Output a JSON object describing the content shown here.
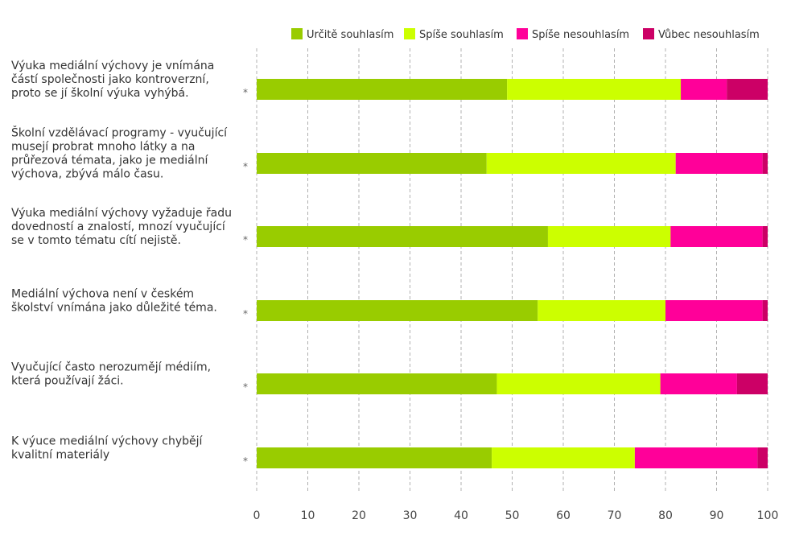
{
  "chart_data": {
    "type": "bar",
    "orientation": "horizontal",
    "stacked": true,
    "categories": [
      "Výuka mediální výchovy je vnímána částí společnosti jako kontroverzní, proto se jí školní výuka vyhýbá.",
      "Školní vzdělávací programy - vyučující musejí probrat mnoho látky a na průřezová témata, jako je mediální výchova, zbývá málo času.",
      "Výuka mediální výchovy vyžaduje řadu dovedností a znalostí, mnozí vyučující se v tomto tématu cítí nejistě.",
      "Mediální výchova není v českém školství vnímána jako důležité téma.",
      "Vyučující často nerozumějí médiím, která používají žáci.",
      "K výuce mediální výchovy chybějí kvalitní materiály"
    ],
    "category_lines": [
      [
        "Výuka mediální výchovy je vnímána",
        "částí společnosti jako kontroverzní,",
        "proto se jí školní výuka vyhýbá."
      ],
      [
        "Školní vzdělávací programy - vyučující",
        "musejí probrat mnoho látky a na",
        "průřezová témata, jako je mediální",
        "výchova, zbývá málo času."
      ],
      [
        "Výuka mediální výchovy vyžaduje řadu",
        "dovedností a znalostí, mnozí vyučující",
        "se v tomto tématu cítí nejistě."
      ],
      [
        "Mediální výchova není v českém",
        "školství vnímána jako důležité téma."
      ],
      [
        "Vyučující často nerozumějí médiím,",
        "která používají žáci."
      ],
      [
        "K výuce mediální výchovy chybějí",
        "kvalitní materiály"
      ]
    ],
    "marker": "*",
    "series": [
      {
        "name": "Určitě souhlasím",
        "color": "#99cc00",
        "values": [
          49,
          45,
          57,
          55,
          47,
          46
        ]
      },
      {
        "name": "Spíše souhlasím",
        "color": "#ccff00",
        "values": [
          34,
          37,
          24,
          25,
          32,
          28
        ]
      },
      {
        "name": "Spíše nesouhlasím",
        "color": "#ff0099",
        "values": [
          9,
          17,
          18,
          19,
          15,
          24
        ]
      },
      {
        "name": "Vůbec nesouhlasím",
        "color": "#cc0066",
        "values": [
          8,
          1,
          1,
          1,
          6,
          2
        ]
      }
    ],
    "xlim": [
      0,
      100
    ],
    "xticks": [
      "0",
      "10",
      "20",
      "30",
      "40",
      "50",
      "60",
      "70",
      "80",
      "90",
      "100"
    ],
    "grid": true,
    "legend_position": "top-right",
    "title": "",
    "xlabel": "",
    "ylabel": ""
  }
}
